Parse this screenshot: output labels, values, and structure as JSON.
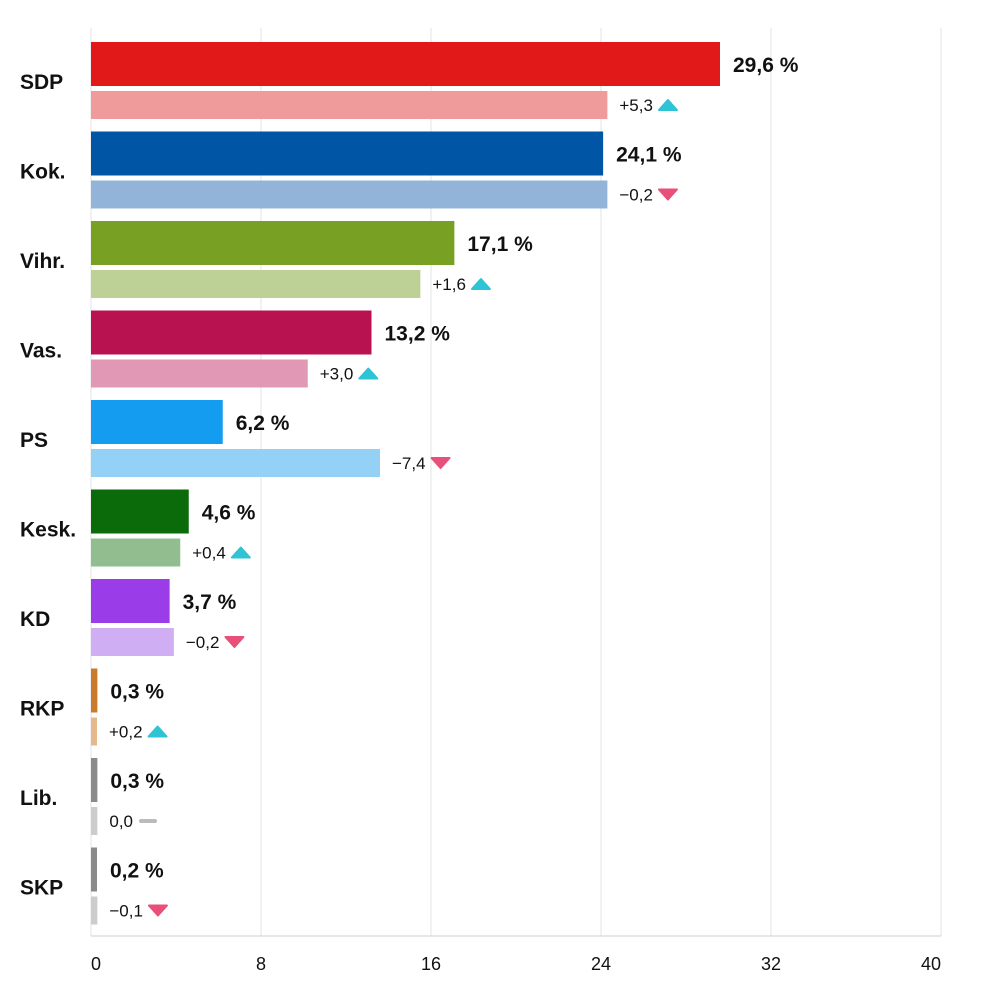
{
  "chart_data": {
    "type": "bar",
    "orientation": "horizontal",
    "xlim": [
      0,
      40
    ],
    "x_ticks": [
      "0",
      "8",
      "16",
      "24",
      "32",
      "40"
    ],
    "grid": true,
    "colors": {
      "up": "#2ec4d6",
      "down": "#e8507a",
      "neutral": "#bbbbbb"
    },
    "rows": [
      {
        "party": "SDP",
        "value": 29.6,
        "value_label": "29,6 %",
        "prev": 24.3,
        "change_label": "+5,3",
        "trend": "up",
        "color": "#e11919",
        "prev_color": "#f09b9b"
      },
      {
        "party": "Kok.",
        "value": 24.1,
        "value_label": "24,1 %",
        "prev": 24.3,
        "change_label": "−0,2",
        "trend": "down",
        "color": "#0055a5",
        "prev_color": "#92b4d9"
      },
      {
        "party": "Vihr.",
        "value": 17.1,
        "value_label": "17,1 %",
        "prev": 15.5,
        "change_label": "+1,6",
        "trend": "up",
        "color": "#78a022",
        "prev_color": "#bdd196"
      },
      {
        "party": "Vas.",
        "value": 13.2,
        "value_label": "13,2 %",
        "prev": 10.2,
        "change_label": "+3,0",
        "trend": "up",
        "color": "#b81251",
        "prev_color": "#e198b4"
      },
      {
        "party": "PS",
        "value": 6.2,
        "value_label": "6,2 %",
        "prev": 13.6,
        "change_label": "−7,4",
        "trend": "down",
        "color": "#139cf0",
        "prev_color": "#95d0f6"
      },
      {
        "party": "Kesk.",
        "value": 4.6,
        "value_label": "4,6 %",
        "prev": 4.2,
        "change_label": "+0,4",
        "trend": "up",
        "color": "#0b6b0b",
        "prev_color": "#92bd8e"
      },
      {
        "party": "KD",
        "value": 3.7,
        "value_label": "3,7 %",
        "prev": 3.9,
        "change_label": "−0,2",
        "trend": "down",
        "color": "#9a3de8",
        "prev_color": "#cfaef4"
      },
      {
        "party": "RKP",
        "value": 0.3,
        "value_label": "0,3 %",
        "prev": 0.1,
        "change_label": "+0,2",
        "trend": "up",
        "color": "#c97a2a",
        "prev_color": "#e6b98a"
      },
      {
        "party": "Lib.",
        "value": 0.3,
        "value_label": "0,3 %",
        "prev": 0.3,
        "change_label": "0,0",
        "trend": "neutral",
        "color": "#8a8a8a",
        "prev_color": "#cccccc"
      },
      {
        "party": "SKP",
        "value": 0.2,
        "value_label": "0,2 %",
        "prev": 0.3,
        "change_label": "−0,1",
        "trend": "down",
        "color": "#8a8a8a",
        "prev_color": "#cccccc"
      }
    ]
  }
}
